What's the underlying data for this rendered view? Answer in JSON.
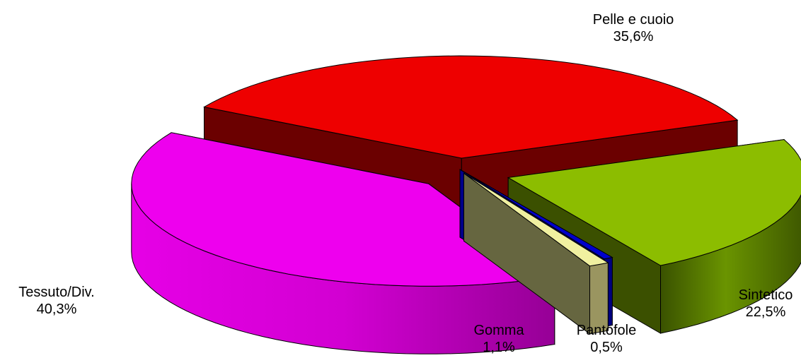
{
  "chart_data": {
    "type": "pie",
    "title": "",
    "three_d": true,
    "exploded": true,
    "legend": "none",
    "series": [
      {
        "labels": [
          "Pelle e cuoio",
          "Sintetico",
          "Pantofole",
          "Gomma",
          "Tessuto/Div."
        ],
        "values": [
          35.6,
          22.5,
          0.5,
          1.1,
          40.3
        ],
        "value_labels": [
          "35,6%",
          "22,5%",
          "0,5%",
          "1,1%",
          "40,3%"
        ],
        "colors": [
          "#ee0000",
          "#8cbd00",
          "#0000cc",
          "#f0f0a0",
          "#ee00ee"
        ]
      }
    ]
  }
}
